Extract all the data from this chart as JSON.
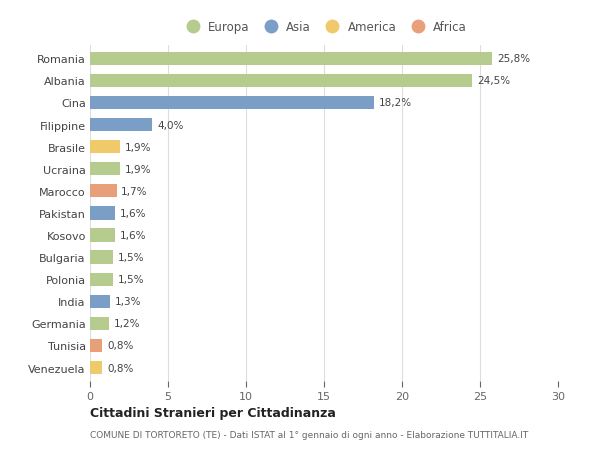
{
  "categories": [
    "Romania",
    "Albania",
    "Cina",
    "Filippine",
    "Brasile",
    "Ucraina",
    "Marocco",
    "Pakistan",
    "Kosovo",
    "Bulgaria",
    "Polonia",
    "India",
    "Germania",
    "Tunisia",
    "Venezuela"
  ],
  "values": [
    25.8,
    24.5,
    18.2,
    4.0,
    1.9,
    1.9,
    1.7,
    1.6,
    1.6,
    1.5,
    1.5,
    1.3,
    1.2,
    0.8,
    0.8
  ],
  "labels": [
    "25,8%",
    "24,5%",
    "18,2%",
    "4,0%",
    "1,9%",
    "1,9%",
    "1,7%",
    "1,6%",
    "1,6%",
    "1,5%",
    "1,5%",
    "1,3%",
    "1,2%",
    "0,8%",
    "0,8%"
  ],
  "colors": [
    "#b5cc8e",
    "#b5cc8e",
    "#7b9ec7",
    "#7b9ec7",
    "#f0c96a",
    "#b5cc8e",
    "#e8a07a",
    "#7b9ec7",
    "#b5cc8e",
    "#b5cc8e",
    "#b5cc8e",
    "#7b9ec7",
    "#b5cc8e",
    "#e8a07a",
    "#f0c96a"
  ],
  "legend": [
    {
      "label": "Europa",
      "color": "#b5cc8e"
    },
    {
      "label": "Asia",
      "color": "#7b9ec7"
    },
    {
      "label": "America",
      "color": "#f0c96a"
    },
    {
      "label": "Africa",
      "color": "#e8a07a"
    }
  ],
  "xlim": [
    0,
    30
  ],
  "xticks": [
    0,
    5,
    10,
    15,
    20,
    25,
    30
  ],
  "title": "Cittadini Stranieri per Cittadinanza",
  "subtitle": "COMUNE DI TORTORETO (TE) - Dati ISTAT al 1° gennaio di ogni anno - Elaborazione TUTTITALIA.IT",
  "background_color": "#ffffff",
  "grid_color": "#dddddd"
}
